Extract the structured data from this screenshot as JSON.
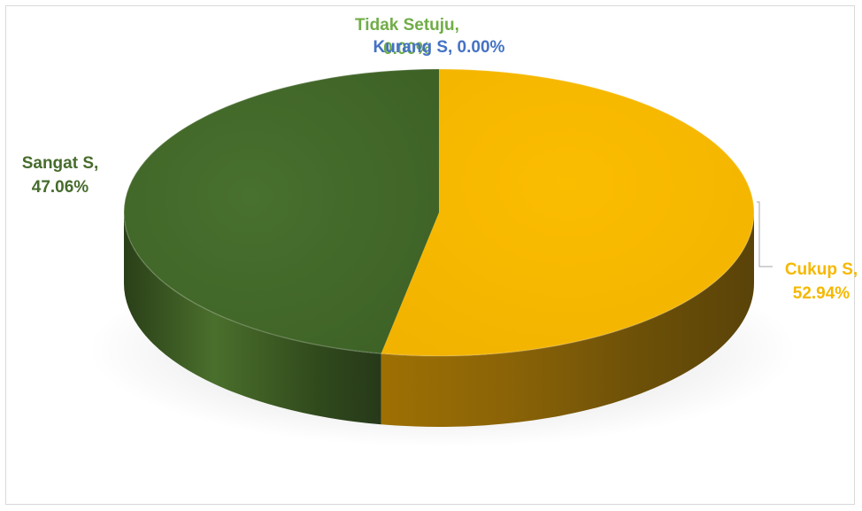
{
  "chart_data": {
    "type": "pie",
    "title": "",
    "labels": [
      "Cukup S",
      "Sangat S",
      "Tidak Setuju",
      "Kurang S"
    ],
    "values": [
      52.94,
      47.06,
      0.0,
      0.0
    ],
    "colors": [
      "#f5b800",
      "#466c2c",
      "#70ad47",
      "#4472c4"
    ],
    "style": "3d",
    "legend": "none",
    "data_labels": [
      {
        "series": "Cukup S",
        "line1": "Cukup S,",
        "line2": "52.94%"
      },
      {
        "series": "Sangat S",
        "line1": "Sangat S,",
        "line2": "47.06%"
      },
      {
        "series": "Tidak Setuju",
        "line1": "Tidak Setuju,",
        "line2": "0.00%"
      },
      {
        "series": "Kurang S",
        "line1": "Kurang S, 0.00%",
        "line2": ""
      }
    ]
  }
}
